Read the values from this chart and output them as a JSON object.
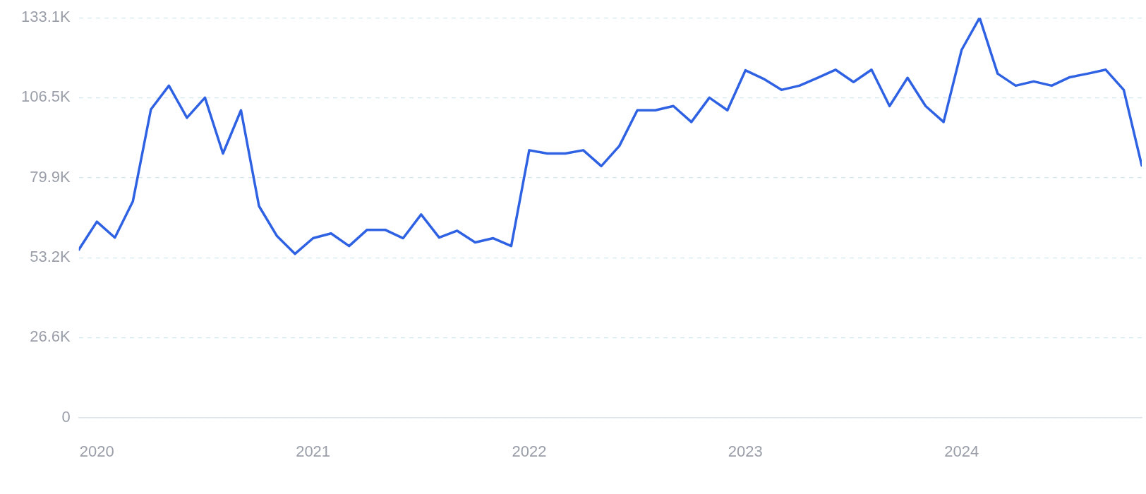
{
  "chart_data": {
    "type": "line",
    "color": "#2f62e3",
    "x": [
      "2019-12",
      "2020-01",
      "2020-02",
      "2020-03",
      "2020-04",
      "2020-05",
      "2020-06",
      "2020-07",
      "2020-08",
      "2020-09",
      "2020-10",
      "2020-11",
      "2020-12",
      "2021-01",
      "2021-02",
      "2021-03",
      "2021-04",
      "2021-05",
      "2021-06",
      "2021-07",
      "2021-08",
      "2021-09",
      "2021-10",
      "2021-11",
      "2021-12",
      "2022-01",
      "2022-02",
      "2022-03",
      "2022-04",
      "2022-05",
      "2022-06",
      "2022-07",
      "2022-08",
      "2022-09",
      "2022-10",
      "2022-11",
      "2022-12",
      "2023-01",
      "2023-02",
      "2023-03",
      "2023-04",
      "2023-05",
      "2023-06",
      "2023-07",
      "2023-08",
      "2023-09",
      "2023-10",
      "2023-11",
      "2023-12",
      "2024-01",
      "2024-02",
      "2024-03",
      "2024-04",
      "2024-05",
      "2024-06",
      "2024-07",
      "2024-08",
      "2024-09",
      "2024-10",
      "2024-11"
    ],
    "values": [
      55900,
      65200,
      59900,
      72000,
      102600,
      110500,
      99800,
      106500,
      87900,
      102300,
      70400,
      60400,
      54500,
      59700,
      61300,
      57100,
      62500,
      62500,
      59700,
      67600,
      59900,
      62200,
      58300,
      59700,
      57100,
      89000,
      87900,
      87900,
      89000,
      83700,
      90400,
      102300,
      102300,
      103700,
      98400,
      106500,
      102300,
      115600,
      112800,
      109100,
      110500,
      113100,
      115800,
      111700,
      115800,
      103700,
      113100,
      103700,
      98400,
      122400,
      133100,
      114500,
      110500,
      111900,
      110500,
      113300,
      114500,
      115800,
      109100,
      83900
    ],
    "xlim": [
      "2019-12",
      "2024-11"
    ],
    "xticks": [
      {
        "value": "2020-01",
        "label": "2020"
      },
      {
        "value": "2021-01",
        "label": "2021"
      },
      {
        "value": "2022-01",
        "label": "2022"
      },
      {
        "value": "2023-01",
        "label": "2023"
      },
      {
        "value": "2024-01",
        "label": "2024"
      }
    ],
    "ylim": [
      0,
      133100
    ],
    "yticks": [
      {
        "value": 0,
        "label": "0"
      },
      {
        "value": 26600,
        "label": "26.6K"
      },
      {
        "value": 53200,
        "label": "53.2K"
      },
      {
        "value": 79900,
        "label": "79.9K"
      },
      {
        "value": 106500,
        "label": "106.5K"
      },
      {
        "value": 133100,
        "label": "133.1K"
      }
    ],
    "grid": "y",
    "legend": false,
    "marker": "none",
    "line_style": "solid"
  }
}
